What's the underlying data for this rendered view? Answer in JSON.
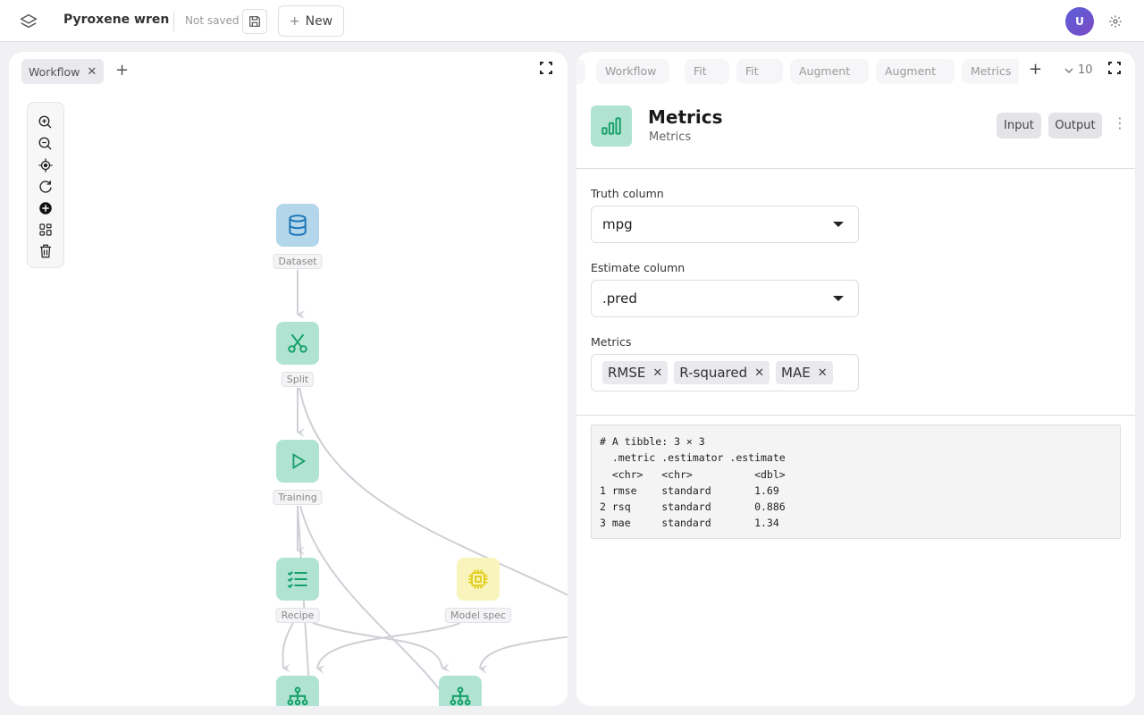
{
  "app": {
    "title": "Pyroxene wren",
    "save_status": "Not saved",
    "new_label": "New",
    "avatar_initial": "U"
  },
  "canvas": {
    "tabs": [
      {
        "label": "Workflow"
      }
    ],
    "nodes": [
      {
        "label": "Dataset",
        "icon": "database-icon",
        "color": "#b3d6ea"
      },
      {
        "label": "Split",
        "icon": "scissors-icon",
        "color": "#b1e3d3"
      },
      {
        "label": "Training",
        "icon": "play-icon",
        "color": "#b1e3d3"
      },
      {
        "label": "Recipe",
        "icon": "checklist-icon",
        "color": "#b1e3d3"
      },
      {
        "label": "Model spec",
        "icon": "chip-icon",
        "color": "#f8f4bb"
      },
      {
        "label": "",
        "icon": "hierarchy-icon",
        "color": "#b1e3d3"
      },
      {
        "label": "",
        "icon": "hierarchy-icon",
        "color": "#b1e3d3"
      }
    ]
  },
  "detail": {
    "tabs": [
      {
        "label": "Workflow"
      },
      {
        "label": "Fit"
      },
      {
        "label": "Fit"
      },
      {
        "label": "Augment"
      },
      {
        "label": "Augment"
      },
      {
        "label": "Metrics"
      }
    ],
    "tab_count": "10",
    "title": "Metrics",
    "subtitle": "Metrics",
    "input_label": "Input",
    "output_label": "Output",
    "truth_label": "Truth column",
    "truth_value": "mpg",
    "estimate_label": "Estimate column",
    "estimate_value": ".pred",
    "metrics_label": "Metrics",
    "metrics": [
      {
        "label": "RMSE"
      },
      {
        "label": "R-squared"
      },
      {
        "label": "MAE"
      }
    ],
    "output_text": "# A tibble: 3 × 3\n  .metric .estimator .estimate\n  <chr>   <chr>          <dbl>\n1 rmse    standard       1.69 \n2 rsq     standard       0.886\n3 mae     standard       1.34 "
  },
  "colors": {
    "accent_green": "#16a06a",
    "node_green": "#b1e3d3",
    "node_blue": "#b3d6ea",
    "node_yellow": "#f8f4bb"
  }
}
